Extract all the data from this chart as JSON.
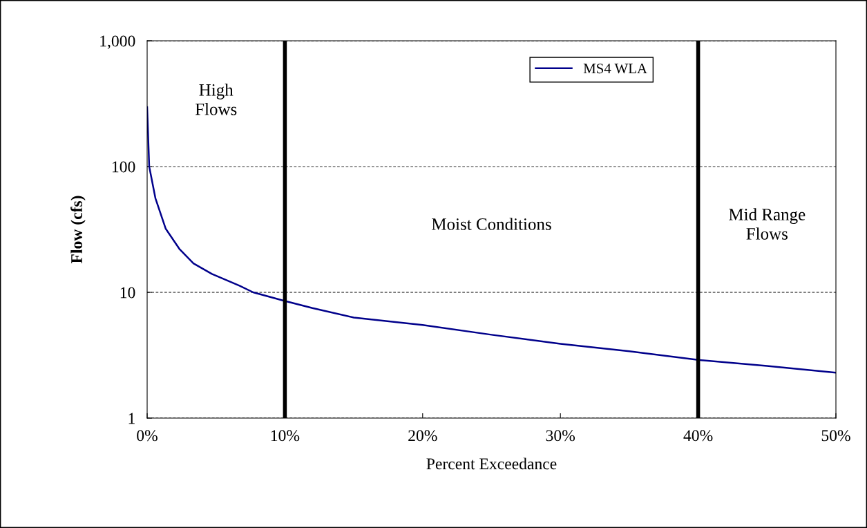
{
  "chart_data": {
    "type": "line",
    "xlabel": "Percent Exceedance",
    "ylabel": "Flow (cfs)",
    "log": "y",
    "xlim": [
      0,
      50
    ],
    "ylim": [
      1,
      1000
    ],
    "xticks": [
      {
        "value": 0,
        "label": "0%"
      },
      {
        "value": 10,
        "label": "10%"
      },
      {
        "value": 20,
        "label": "20%"
      },
      {
        "value": 30,
        "label": "30%"
      },
      {
        "value": 40,
        "label": "40%"
      },
      {
        "value": 50,
        "label": "50%"
      }
    ],
    "yticks": [
      1,
      10,
      100,
      {
        "value": 1000,
        "label": "1,000"
      }
    ],
    "grid": "y",
    "legend": "top right",
    "line_style": "solid",
    "marker": "none",
    "series": [
      {
        "name": "MS4 WLA",
        "color": "#00008b",
        "x": [
          0,
          0.15,
          0.6,
          1.35,
          2.36,
          3.36,
          4.7,
          6.7,
          7.7,
          9.9,
          12,
          15,
          20,
          25,
          30,
          35,
          40,
          45,
          50
        ],
        "values": [
          297,
          100,
          56,
          32,
          22,
          17,
          14,
          11.3,
          10,
          8.6,
          7.5,
          6.3,
          5.5,
          4.6,
          3.9,
          3.4,
          2.9,
          2.6,
          2.3
        ]
      }
    ],
    "ref_lines": [
      {
        "axis": "x",
        "value": 10,
        "color": "#000000"
      },
      {
        "axis": "x",
        "value": 40,
        "color": "#000000"
      }
    ],
    "annotations": [
      "High\nFlows",
      "Moist Conditions",
      "Mid Range\nFlows"
    ]
  }
}
